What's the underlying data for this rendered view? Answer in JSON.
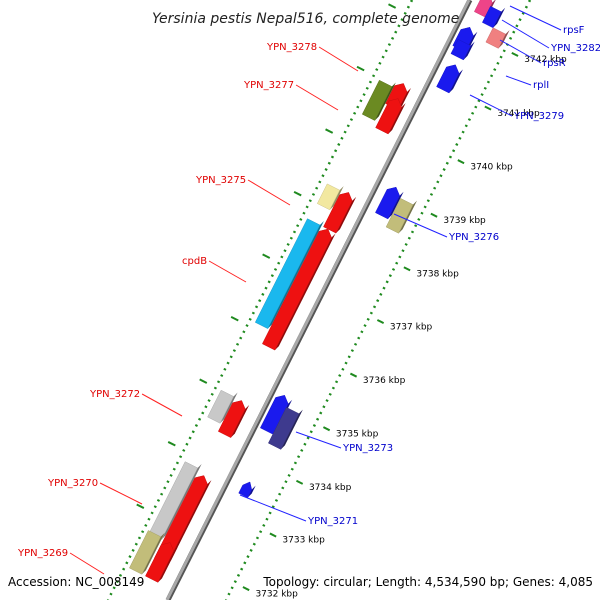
{
  "title": "Yersinia pestis Nepal516, complete genome",
  "accession": "Accession: NC_008149",
  "topology": "Topology: circular; Length: 4,534,590 bp; Genes: 4,085",
  "colors": {
    "backbone": "#8a8a8a",
    "tick_dots": "#1f8a1f",
    "left_label": "#e00000",
    "right_label": "#0000cc",
    "red": "#ee1111",
    "blue": "#1a1aee",
    "olive": "#6b8a22",
    "khaki": "#c2bd7a",
    "pale_yellow": "#f2e8a0",
    "cyan": "#1ab8ee",
    "gray": "#c8c8c8",
    "navy": "#3e3a8e",
    "pink": "#ee4488",
    "light_pink": "#f08080"
  },
  "scale_labels": [
    "3742 kbp",
    "3741 kbp",
    "3740 kbp",
    "3739 kbp",
    "3738 kbp",
    "3737 kbp",
    "3736 kbp",
    "3735 kbp",
    "3734 kbp",
    "3733 kbp",
    "3732 kbp"
  ],
  "left_genes": [
    {
      "name": "YPN_3278",
      "gene_color": "red"
    },
    {
      "name": "YPN_3277",
      "gene_color": "olive"
    },
    {
      "name": "YPN_3275",
      "gene_color": "pale_yellow"
    },
    {
      "name": "cpdB",
      "gene_color": "cyan"
    },
    {
      "name": "YPN_3272",
      "gene_color": "gray"
    },
    {
      "name": "YPN_3270",
      "gene_color": "gray"
    },
    {
      "name": "YPN_3269",
      "gene_color": "khaki"
    }
  ],
  "right_genes": [
    {
      "name": "rpsF",
      "gene_color": "blue"
    },
    {
      "name": "YPN_3282",
      "gene_color": "pink"
    },
    {
      "name": "rpsR",
      "gene_color": "light_pink"
    },
    {
      "name": "rplI",
      "gene_color": "blue"
    },
    {
      "name": "YPN_3279",
      "gene_color": "blue"
    },
    {
      "name": "YPN_3276",
      "gene_color": "khaki"
    },
    {
      "name": "YPN_3273",
      "gene_color": "navy"
    },
    {
      "name": "YPN_3271",
      "gene_color": "blue"
    }
  ]
}
